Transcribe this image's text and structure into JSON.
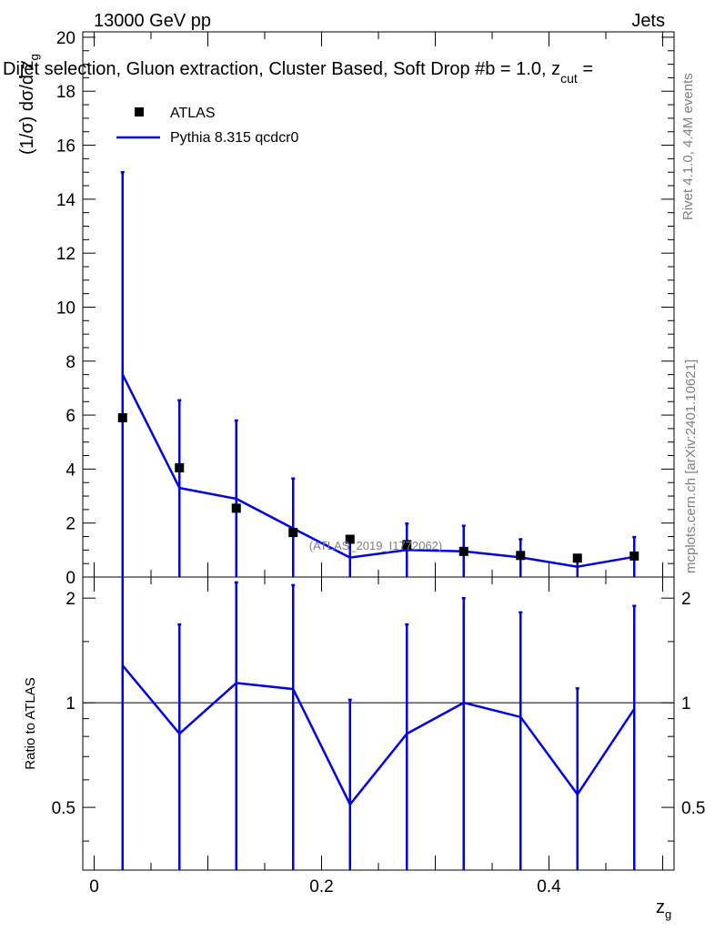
{
  "header": {
    "left": "13000 GeV pp",
    "right": "Jets",
    "title": "Dijet selection, Gluon extraction, Cluster Based, Soft Drop #b = 1.0, z",
    "title_sub": "cut",
    "title_tail": " ="
  },
  "side_text": {
    "rivet": "Rivet 4.1.0,  4.4M events",
    "mcplots": "mcplots.cern.ch [arXiv:2401.10621]"
  },
  "watermark": "(ATLAS_2019_I1772062)",
  "legend": {
    "data_label": "ATLAS",
    "mc_label": "Pythia 8.315 qcdcr0"
  },
  "colors": {
    "data": "#000000",
    "mc": "#0000e6",
    "ref_line": "#000000"
  },
  "chart_data": [
    {
      "type": "line",
      "role": "main",
      "ylabel": "(1/σ) dσ/d z",
      "ylabel_sub": "g",
      "xlim": [
        -0.01,
        0.51
      ],
      "ylim": [
        0,
        20.2
      ],
      "yticks": [
        0,
        2,
        4,
        6,
        8,
        10,
        12,
        14,
        16,
        18,
        20
      ],
      "ytick_labels": [
        "0",
        "2",
        "4",
        "6",
        "8",
        "10",
        "12",
        "14",
        "16",
        "18",
        "20"
      ],
      "x": [
        0.025,
        0.075,
        0.125,
        0.175,
        0.225,
        0.275,
        0.325,
        0.375,
        0.425,
        0.475
      ],
      "series": [
        {
          "name": "ATLAS",
          "kind": "points",
          "values": [
            5.9,
            4.05,
            2.55,
            1.65,
            1.4,
            1.2,
            0.95,
            0.8,
            0.7,
            0.78
          ]
        },
        {
          "name": "Pythia 8.315 qcdcr0",
          "kind": "line",
          "values": [
            7.5,
            3.3,
            2.9,
            1.8,
            0.72,
            1.0,
            0.95,
            0.73,
            0.38,
            0.75
          ],
          "err_up": [
            15.0,
            6.55,
            5.8,
            3.65,
            1.4,
            1.98,
            1.9,
            1.4,
            0.75,
            1.48
          ],
          "err_down": [
            0,
            0,
            0,
            0,
            0,
            0,
            0,
            0,
            0,
            0
          ]
        }
      ]
    },
    {
      "type": "line",
      "role": "ratio",
      "ylabel": "Ratio to ATLAS",
      "xlabel": "z",
      "xlabel_sub": "g",
      "xlim": [
        -0.01,
        0.51
      ],
      "ylim": [
        0.33,
        2.3
      ],
      "log_y": true,
      "yticks": [
        0.5,
        1,
        2
      ],
      "ytick_labels": [
        "0.5",
        "1",
        "2"
      ],
      "xticks": [
        0,
        0.2,
        0.4
      ],
      "xtick_labels": [
        "0",
        "0.2",
        "0.4"
      ],
      "x": [
        0.025,
        0.075,
        0.125,
        0.175,
        0.225,
        0.275,
        0.325,
        0.375,
        0.425,
        0.475
      ],
      "series": [
        {
          "name": "Pythia 8.315 qcdcr0",
          "kind": "line",
          "values": [
            1.28,
            0.815,
            1.14,
            1.095,
            0.51,
            0.815,
            1.0,
            0.91,
            0.545,
            0.96
          ],
          "err_up": [
            3.5,
            1.68,
            2.22,
            2.18,
            1.02,
            1.68,
            2.0,
            1.82,
            1.1,
            1.9
          ],
          "err_down": [
            0,
            0,
            0,
            0,
            0,
            0,
            0,
            0,
            0,
            0
          ]
        }
      ]
    }
  ]
}
